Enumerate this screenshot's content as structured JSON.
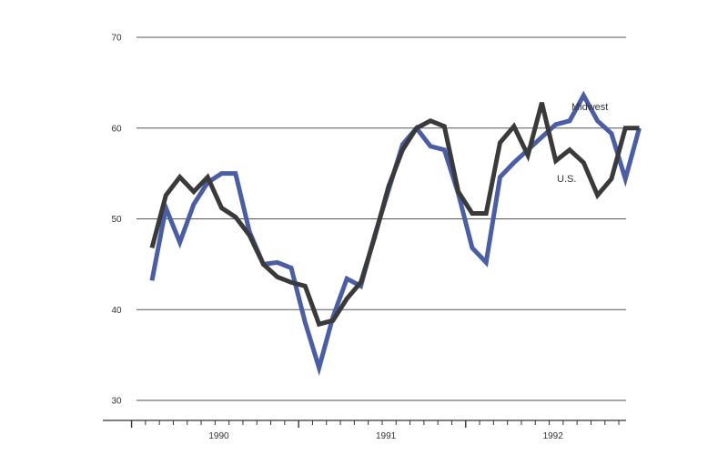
{
  "chart_data": {
    "type": "line",
    "title": "",
    "xlabel": "",
    "ylabel": "",
    "ylim": [
      30,
      70
    ],
    "yticks": [
      30,
      40,
      50,
      60,
      70
    ],
    "x_year_labels": [
      "1990",
      "1991",
      "1992"
    ],
    "x_month_index_range": [
      0,
      35
    ],
    "grid": true,
    "series": [
      {
        "name": "Midwest",
        "color": "#4a5ea8",
        "values": [
          43.2,
          51.2,
          47.4,
          51.6,
          54.0,
          55.0,
          55.0,
          48.6,
          45.0,
          45.2,
          44.6,
          38.6,
          33.6,
          39.2,
          43.4,
          42.6,
          48.2,
          53.2,
          58.2,
          60.0,
          58.0,
          57.6,
          52.8,
          46.8,
          45.2,
          54.6,
          56.2,
          57.6,
          59.0,
          60.4,
          60.8,
          63.6,
          60.8,
          59.4,
          54.4,
          60.0
        ]
      },
      {
        "name": "U.S.",
        "color": "#3a3a3a",
        "values": [
          46.8,
          52.6,
          54.6,
          53.0,
          54.6,
          51.2,
          50.2,
          48.2,
          45.0,
          43.6,
          43.0,
          42.6,
          38.4,
          38.8,
          41.2,
          43.0,
          48.0,
          53.6,
          57.6,
          60.0,
          60.8,
          60.2,
          53.0,
          50.6,
          50.6,
          58.4,
          60.2,
          57.0,
          62.8,
          56.4,
          57.6,
          56.2,
          52.6,
          54.4,
          60.0,
          60.0
        ]
      }
    ],
    "legend": [
      "Midwest",
      "U.S."
    ]
  }
}
